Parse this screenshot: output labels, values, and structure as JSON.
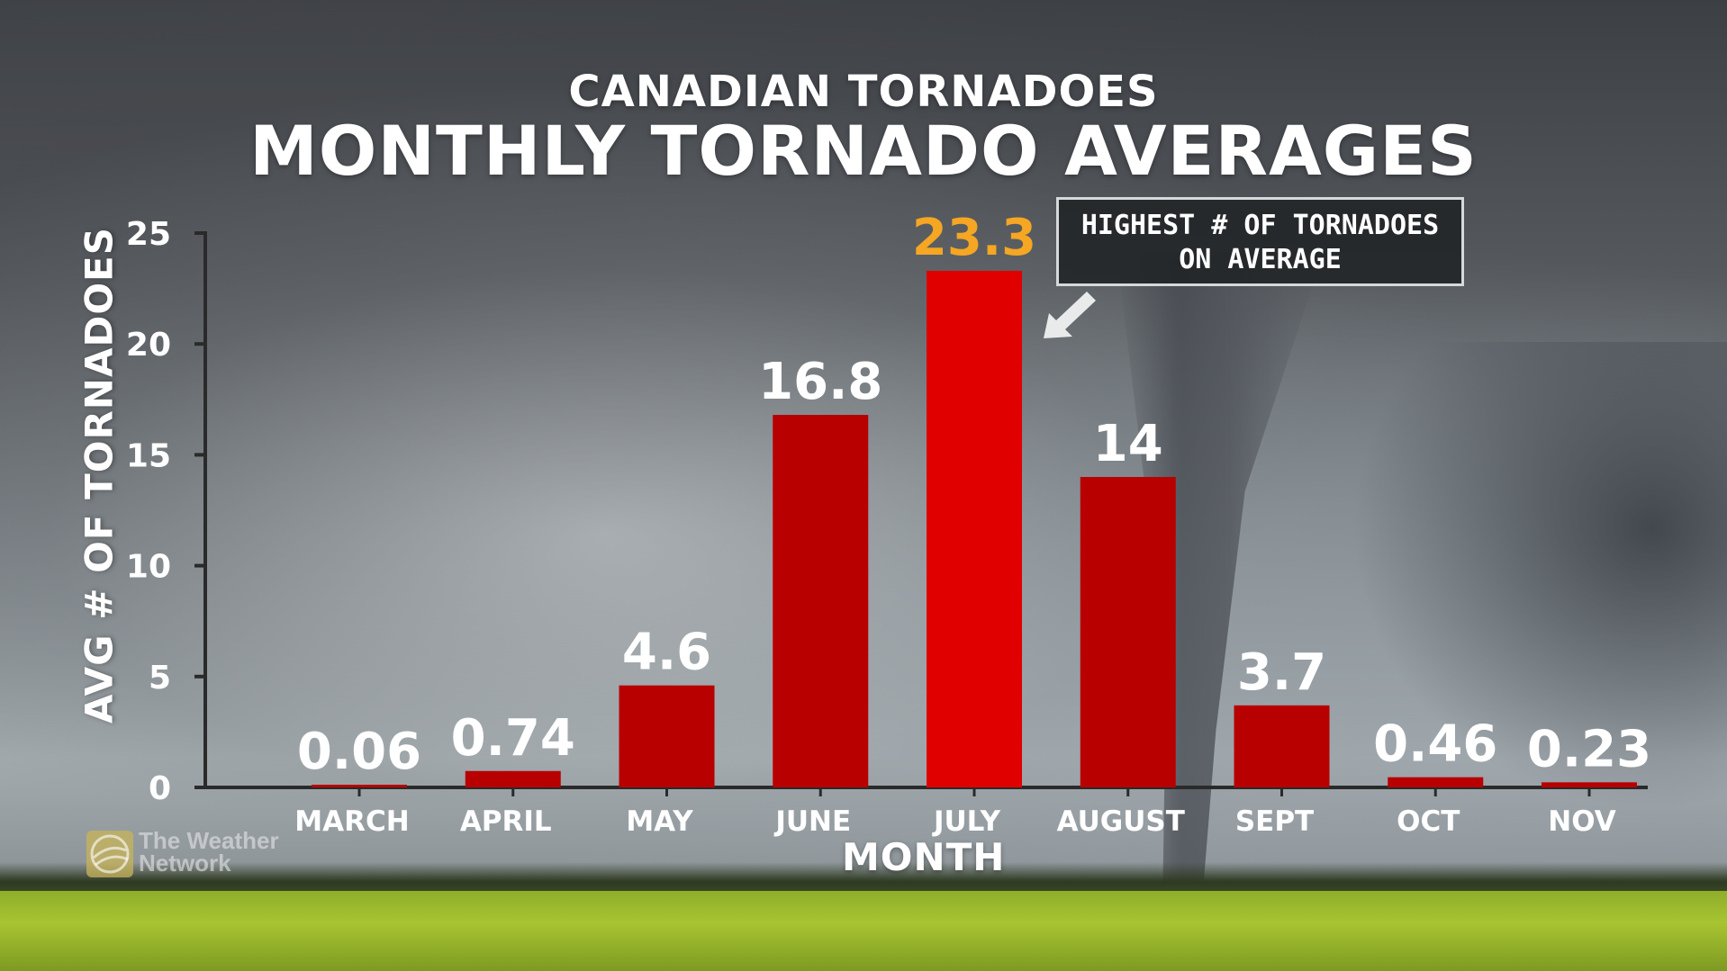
{
  "header": {
    "subtitle": "CANADIAN TORNADOES",
    "title": "MONTHLY TORNADO AVERAGES"
  },
  "callout": {
    "line1": "HIGHEST # OF TORNADOES",
    "line2": "ON AVERAGE"
  },
  "logo": {
    "line1": "The Weather",
    "line2": "Network"
  },
  "colors": {
    "bar": "#e00000",
    "bar_dark": "#b80000",
    "peak_label": "#f5a623",
    "label": "#ffffff"
  },
  "chart_data": {
    "type": "bar",
    "title": "MONTHLY TORNADO AVERAGES",
    "subtitle": "CANADIAN TORNADOES",
    "xlabel": "MONTH",
    "ylabel": "AVG # OF TORNADOES",
    "categories": [
      "MARCH",
      "APRIL",
      "MAY",
      "JUNE",
      "JULY",
      "AUGUST",
      "SEPT",
      "OCT",
      "NOV"
    ],
    "values": [
      0.06,
      0.74,
      4.6,
      16.8,
      23.3,
      14,
      3.7,
      0.46,
      0.23
    ],
    "value_labels": [
      "0.06",
      "0.74",
      "4.6",
      "16.8",
      "23.3",
      "14",
      "3.7",
      "0.46",
      "0.23"
    ],
    "yticks": [
      0,
      5,
      10,
      15,
      20,
      25
    ],
    "ylim": [
      0,
      25
    ],
    "highlight_index": 4,
    "grid": false
  }
}
